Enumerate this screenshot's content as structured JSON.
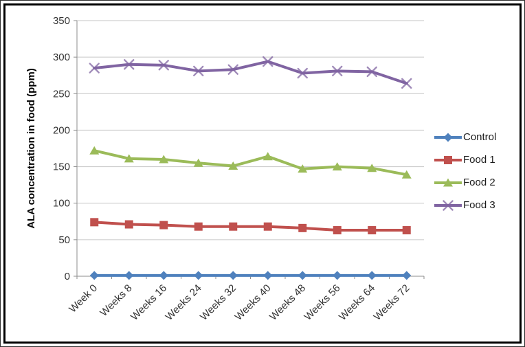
{
  "figure": {
    "background": "#ffffff",
    "outer_border_color": "#2e2e2e",
    "inner_border_color": "#000000",
    "gridline_color": "#c6c6c6",
    "axis_color": "#8e8e8e",
    "tick_label_color": "#333333"
  },
  "chart_data": {
    "type": "line",
    "title": "",
    "xlabel": "",
    "ylabel": "ALA concentration in food (ppm)",
    "ylim": [
      0,
      350
    ],
    "ytick_step": 50,
    "ytick_labels": [
      "0",
      "50",
      "100",
      "150",
      "200",
      "250",
      "300",
      "350"
    ],
    "grid": "horizontal",
    "legend_position": "right",
    "categories": [
      "Week 0",
      "Weeks 8",
      "Weeks 16",
      "Weeks 24",
      "Weeks 32",
      "Weeks 40",
      "Weeks 48",
      "Weeks 56",
      "Weeks 64",
      "Weeks 72"
    ],
    "series": [
      {
        "name": "Control",
        "color": "#4F81BD",
        "marker": "diamond",
        "values": [
          1,
          1,
          1,
          1,
          1,
          1,
          1,
          1,
          1,
          1
        ]
      },
      {
        "name": "Food 1",
        "color": "#C0504D",
        "marker": "square",
        "values": [
          74,
          71,
          70,
          68,
          68,
          68,
          66,
          63,
          63,
          63
        ]
      },
      {
        "name": "Food 2",
        "color": "#9BBB59",
        "marker": "triangle",
        "values": [
          172,
          161,
          160,
          155,
          151,
          164,
          147,
          150,
          148,
          139
        ]
      },
      {
        "name": "Food 3",
        "color": "#8064A2",
        "marker": "x",
        "values": [
          285,
          290,
          289,
          281,
          283,
          294,
          278,
          281,
          280,
          264
        ]
      }
    ]
  }
}
